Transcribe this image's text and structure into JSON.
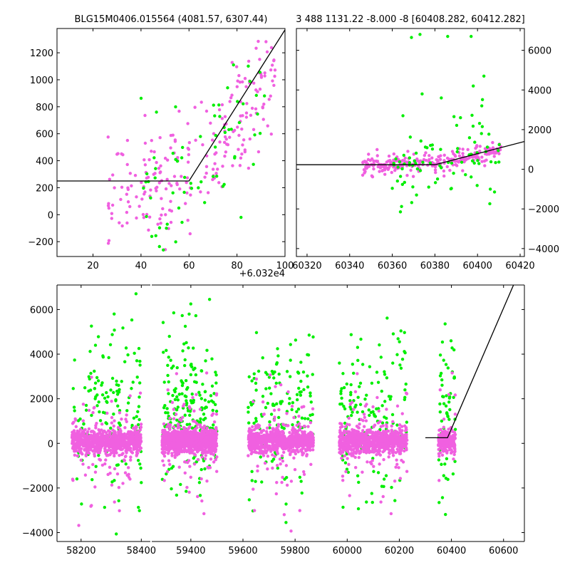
{
  "colors": {
    "series_a": "#f060e0",
    "series_b": "#00ee00",
    "model": "#000000"
  },
  "chart_data": [
    {
      "type": "scatter",
      "title": "BLG15M0406.015564 (4081.57, 6307.44)",
      "xlim": [
        5,
        100
      ],
      "ylim": [
        -310,
        1380
      ],
      "xticks": [
        20,
        40,
        60,
        80,
        100
      ],
      "yticks": [
        -200,
        0,
        200,
        400,
        600,
        800,
        1000,
        1200
      ],
      "xticklabels": [
        "20",
        "40",
        "60",
        "80",
        "100"
      ],
      "yticklabels": [
        "−200",
        "0",
        "200",
        "400",
        "600",
        "800",
        "1000",
        "1200"
      ],
      "model_line": [
        [
          5,
          250
        ],
        [
          60,
          250
        ],
        [
          100,
          1370
        ]
      ],
      "clouds": [
        {
          "name_key": "series_a",
          "n": 240,
          "x": [
            26,
            96
          ],
          "shape": "ramp",
          "y0": 130,
          "y1": 1120,
          "spread": 210
        },
        {
          "name_key": "series_b",
          "n": 70,
          "x": [
            40,
            93
          ],
          "shape": "ramp",
          "y0": 100,
          "y1": 1000,
          "spread": 280
        }
      ]
    },
    {
      "type": "scatter",
      "title": "3 488 1131.22 -8.000 -8 [60408.282, 60412.282]",
      "xlim": [
        60315,
        60422
      ],
      "ylim": [
        -4400,
        7100
      ],
      "xticks": [
        60320,
        60340,
        60360,
        60380,
        60400,
        60420
      ],
      "yticks": [
        -4000,
        -2000,
        0,
        2000,
        4000,
        6000
      ],
      "xticklabels": [
        "60320",
        "60340",
        "60360",
        "60380",
        "60400",
        "60420"
      ],
      "yticklabels": [
        "−4000",
        "−2000",
        "0",
        "2000",
        "4000",
        "6000"
      ],
      "offset_label": "+6.032e4",
      "model_line": [
        [
          60315,
          230
        ],
        [
          60380,
          230
        ],
        [
          60422,
          1400
        ]
      ],
      "clouds": [
        {
          "name_key": "series_a",
          "n": 260,
          "x": [
            60346,
            60411
          ],
          "shape": "ramp_r",
          "y0": 150,
          "y1": 1000,
          "spread": 300
        },
        {
          "name_key": "series_b",
          "n": 80,
          "x": [
            60360,
            60411
          ],
          "shape": "ramp_r",
          "y0": 200,
          "y1": 900,
          "spread": 1400
        }
      ],
      "outliers": [
        [
          60373,
          6800
        ],
        [
          60386,
          6700
        ],
        [
          60397,
          6700
        ],
        [
          60369,
          6650
        ],
        [
          60374,
          3800
        ],
        [
          60383,
          3600
        ],
        [
          60398,
          4200
        ],
        [
          60403,
          4700
        ],
        [
          60365,
          2700
        ],
        [
          60392,
          2600
        ],
        [
          60402,
          3200
        ],
        [
          60406,
          -1000
        ]
      ]
    },
    {
      "type": "scatter",
      "xlim": [
        58120,
        60680
      ],
      "ylim": [
        -4400,
        7100
      ],
      "xticks": [
        58200,
        58400,
        59400,
        59600,
        59800,
        60000,
        60200,
        60400,
        60600
      ],
      "yticks": [
        -4000,
        -2000,
        0,
        2000,
        4000,
        6000
      ],
      "xticklabels": [
        "58200",
        "58400",
        "59400",
        "59600",
        "59800",
        "60000",
        "60200",
        "60400",
        "60600"
      ],
      "yticklabels": [
        "−4000",
        "−2000",
        "0",
        "2000",
        "4000",
        "6000"
      ],
      "break_from": 58430,
      "break_to": 59250,
      "model_line": [
        [
          60300,
          250
        ],
        [
          60385,
          250
        ],
        [
          60640,
          7150
        ]
      ],
      "clusters": [
        {
          "x": [
            58170,
            58400
          ],
          "n_a": 900,
          "n_b": 160
        },
        {
          "x": [
            59290,
            59500
          ],
          "n_a": 1000,
          "n_b": 230
        },
        {
          "x": [
            59620,
            59870
          ],
          "n_a": 800,
          "n_b": 150
        },
        {
          "x": [
            59970,
            60230
          ],
          "n_a": 800,
          "n_b": 150
        },
        {
          "x": [
            60350,
            60415
          ],
          "n_a": 250,
          "n_b": 60
        }
      ]
    }
  ]
}
